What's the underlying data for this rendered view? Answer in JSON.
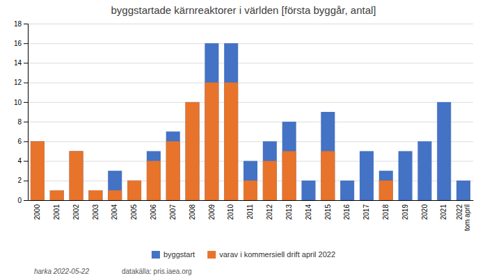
{
  "chart_data": {
    "type": "bar",
    "title": "byggstartade kärnreaktorer i världen [första byggår, antal]",
    "categories": [
      "2000",
      "2001",
      "2002",
      "2003",
      "2004",
      "2005",
      "2006",
      "2007",
      "2008",
      "2009",
      "2010",
      "2011",
      "2012",
      "2013",
      "2014",
      "2015",
      "2016",
      "2017",
      "2018",
      "2019",
      "2020",
      "2021",
      "2022\ntom april"
    ],
    "series": [
      {
        "name": "byggstart",
        "color": "#4472C4",
        "values": [
          6,
          1,
          5,
          1,
          3,
          2,
          5,
          7,
          10,
          16,
          16,
          4,
          6,
          8,
          2,
          9,
          2,
          5,
          3,
          5,
          6,
          10,
          2
        ]
      },
      {
        "name": "varav i kommersiell drift april 2022",
        "color": "#E8732A",
        "values": [
          6,
          1,
          5,
          1,
          1,
          2,
          4,
          6,
          10,
          12,
          12,
          2,
          4,
          5,
          0,
          5,
          0,
          0,
          2,
          0,
          0,
          0,
          0
        ]
      }
    ],
    "stacked": false,
    "ylim": [
      0,
      18
    ],
    "yticks": [
      0,
      2,
      4,
      6,
      8,
      10,
      12,
      14,
      16,
      18
    ],
    "grid": true,
    "legend": "bottom",
    "annotations": [
      "harka 2022-05-22",
      "datakälla: pris.iaea.org"
    ]
  }
}
